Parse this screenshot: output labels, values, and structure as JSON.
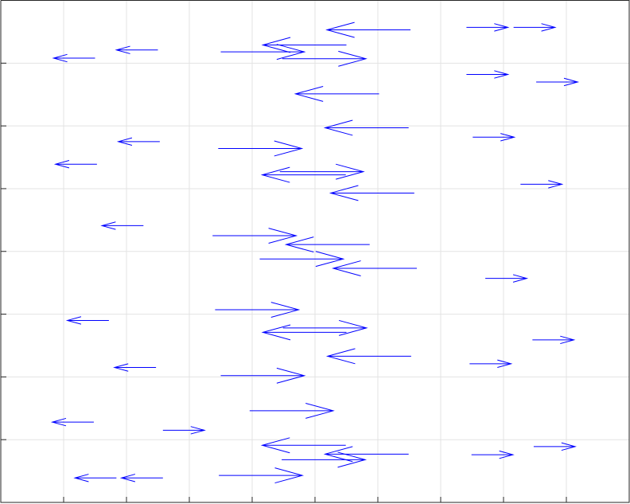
{
  "chart_data": {
    "type": "quiver",
    "color": "#0000ff",
    "grid": true,
    "xlim": [
      0,
      10
    ],
    "ylim": [
      0,
      8
    ],
    "xticks": [
      1,
      2,
      3,
      4,
      5,
      6,
      7,
      8,
      9
    ],
    "yticks": [
      1,
      2,
      3,
      4,
      5,
      6,
      7
    ],
    "x": [
      6.52,
      7.41,
      8.16,
      2.5,
      1.5,
      3.5,
      5.5,
      4.48,
      7.41,
      8.52,
      6.02,
      6.49,
      7.51,
      2.53,
      3.46,
      1.53,
      5.49,
      4.44,
      8.27,
      6.58,
      2.27,
      3.37,
      5.87,
      4.12,
      6.62,
      7.71,
      3.41,
      1.72,
      5.5,
      4.49,
      8.46,
      6.53,
      2.47,
      7.46,
      3.5,
      3.96,
      1.48,
      2.58,
      5.49,
      6.49,
      4.47,
      7.49,
      8.48,
      3.47,
      1.84,
      2.58
    ],
    "y": [
      7.53,
      7.57,
      7.57,
      7.21,
      7.08,
      7.18,
      7.29,
      7.07,
      6.82,
      6.7,
      6.51,
      5.97,
      5.82,
      5.75,
      5.64,
      5.39,
      5.22,
      5.27,
      5.07,
      4.93,
      4.41,
      4.25,
      4.11,
      3.88,
      3.73,
      3.57,
      3.07,
      2.9,
      2.71,
      2.78,
      2.59,
      2.33,
      2.15,
      2.21,
      2.02,
      1.46,
      1.28,
      1.15,
      0.91,
      0.77,
      0.68,
      0.76,
      0.89,
      0.43,
      0.39,
      0.39
    ],
    "u": [
      -1.33,
      0.66,
      0.66,
      -0.66,
      -0.66,
      1.33,
      -1.33,
      1.33,
      0.66,
      0.66,
      -1.33,
      -1.33,
      0.66,
      -0.66,
      1.33,
      -0.66,
      -1.33,
      1.33,
      0.66,
      -1.33,
      -0.66,
      1.33,
      -1.33,
      1.33,
      -1.33,
      0.66,
      1.33,
      -0.66,
      -1.33,
      1.33,
      0.66,
      -1.33,
      -0.66,
      0.66,
      1.33,
      1.33,
      -0.66,
      0.66,
      -1.33,
      -1.33,
      1.33,
      0.66,
      0.66,
      1.33,
      -0.66,
      -0.66
    ],
    "v": [
      0,
      0,
      0,
      0,
      0,
      0,
      0,
      0,
      0,
      0,
      0,
      0,
      0,
      0,
      0,
      0,
      0,
      0,
      0,
      0,
      0,
      0,
      0,
      0,
      0,
      0,
      0,
      0,
      0,
      0,
      0,
      0,
      0,
      0,
      0,
      0,
      0,
      0,
      0,
      0,
      0,
      0,
      0,
      0,
      0,
      0
    ]
  }
}
